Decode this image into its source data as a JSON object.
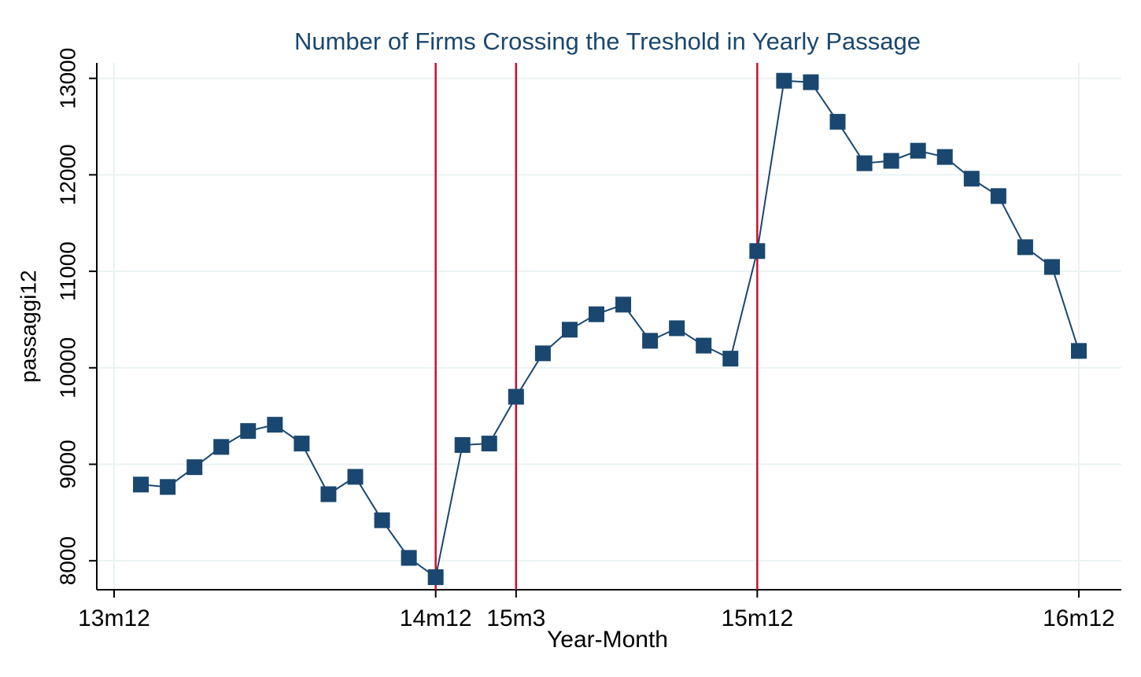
{
  "chart_data": {
    "type": "line",
    "title": "Number of Firms Crossing the Treshold in Yearly Passage",
    "x_label": "Year-Month",
    "y_label": "passaggi12",
    "categories": [
      "13m12",
      null,
      null,
      null,
      null,
      null,
      null,
      null,
      null,
      null,
      null,
      null,
      "14m12",
      null,
      null,
      "15m3",
      null,
      null,
      null,
      null,
      null,
      null,
      null,
      null,
      "15m12",
      null,
      null,
      null,
      null,
      null,
      null,
      null,
      null,
      null,
      null,
      null,
      "16m12"
    ],
    "series": [
      {
        "name": "passaggi12",
        "color": "#1a476f",
        "values": [
          null,
          8790,
          8765,
          8970,
          9180,
          9345,
          9410,
          9215,
          8690,
          8870,
          8420,
          8030,
          7830,
          9200,
          9215,
          9700,
          10150,
          10395,
          10555,
          10655,
          10280,
          10410,
          10230,
          10095,
          11210,
          12975,
          12960,
          12550,
          12120,
          12145,
          12250,
          12185,
          11960,
          11780,
          11250,
          11045,
          10175
        ]
      }
    ],
    "reference_lines": {
      "categories": [
        "14m12",
        "15m3",
        "15m12"
      ],
      "color": "#c8102e"
    },
    "ylim": [
      7700,
      13160
    ],
    "yticks": [
      8000,
      9000,
      10000,
      11000,
      12000,
      13000
    ],
    "grid": true
  }
}
